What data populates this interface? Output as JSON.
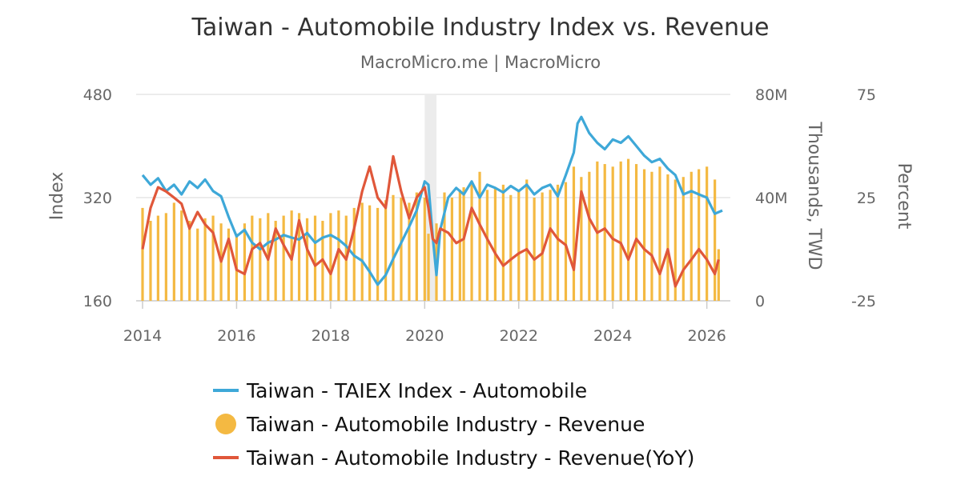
{
  "chart_data": {
    "type": "bar+line",
    "title": "Taiwan - Automobile Industry Index vs. Revenue",
    "subtitle": "MacroMicro.me | MacroMicro",
    "x_ticks": [
      "2014",
      "2016",
      "2018",
      "2020",
      "2022",
      "2024",
      "2026"
    ],
    "x_range": [
      2014.0,
      2026.5
    ],
    "y_axes": {
      "left": {
        "label": "Index",
        "range": [
          160,
          480
        ],
        "ticks": [
          "160",
          "320",
          "480"
        ]
      },
      "right1": {
        "label": "Thousands, TWD",
        "range": [
          0,
          80000
        ],
        "ticks": [
          "0",
          "40M",
          "80M"
        ]
      },
      "right2": {
        "label": "Percent",
        "range": [
          -25,
          75
        ],
        "ticks": [
          "-25",
          "25",
          "75"
        ]
      }
    },
    "shaded_period": [
      2020.0,
      2020.25
    ],
    "colors": {
      "index": "#3ea8d8",
      "revenue": "#f4b942",
      "yoy": "#e0573a",
      "grid": "#e6e6e6",
      "shade": "#ececec"
    },
    "legend": [
      {
        "name": "Taiwan - TAIEX Index - Automobile",
        "marker": "line",
        "color": "#3ea8d8"
      },
      {
        "name": "Taiwan - Automobile Industry - Revenue",
        "marker": "circle",
        "color": "#f4b942"
      },
      {
        "name": "Taiwan - Automobile Industry - Revenue(YoY)",
        "marker": "line",
        "color": "#e0573a"
      }
    ],
    "series": [
      {
        "name": "Taiwan - TAIEX Index - Automobile",
        "axis": "left",
        "type": "line",
        "points": [
          [
            2014.0,
            355
          ],
          [
            2014.17,
            340
          ],
          [
            2014.33,
            350
          ],
          [
            2014.5,
            330
          ],
          [
            2014.67,
            340
          ],
          [
            2014.83,
            325
          ],
          [
            2015.0,
            345
          ],
          [
            2015.17,
            335
          ],
          [
            2015.33,
            348
          ],
          [
            2015.5,
            330
          ],
          [
            2015.67,
            322
          ],
          [
            2015.83,
            290
          ],
          [
            2016.0,
            260
          ],
          [
            2016.17,
            270
          ],
          [
            2016.33,
            250
          ],
          [
            2016.5,
            240
          ],
          [
            2016.67,
            250
          ],
          [
            2016.83,
            255
          ],
          [
            2017.0,
            262
          ],
          [
            2017.17,
            258
          ],
          [
            2017.33,
            255
          ],
          [
            2017.5,
            265
          ],
          [
            2017.67,
            250
          ],
          [
            2017.83,
            258
          ],
          [
            2018.0,
            262
          ],
          [
            2018.17,
            255
          ],
          [
            2018.33,
            245
          ],
          [
            2018.5,
            230
          ],
          [
            2018.67,
            222
          ],
          [
            2018.83,
            205
          ],
          [
            2019.0,
            185
          ],
          [
            2019.17,
            200
          ],
          [
            2019.33,
            225
          ],
          [
            2019.5,
            250
          ],
          [
            2019.67,
            275
          ],
          [
            2019.83,
            300
          ],
          [
            2020.0,
            345
          ],
          [
            2020.08,
            340
          ],
          [
            2020.17,
            260
          ],
          [
            2020.25,
            200
          ],
          [
            2020.33,
            270
          ],
          [
            2020.5,
            320
          ],
          [
            2020.67,
            335
          ],
          [
            2020.83,
            325
          ],
          [
            2021.0,
            345
          ],
          [
            2021.17,
            320
          ],
          [
            2021.33,
            340
          ],
          [
            2021.5,
            335
          ],
          [
            2021.67,
            328
          ],
          [
            2021.83,
            338
          ],
          [
            2022.0,
            330
          ],
          [
            2022.17,
            340
          ],
          [
            2022.33,
            325
          ],
          [
            2022.5,
            335
          ],
          [
            2022.67,
            340
          ],
          [
            2022.83,
            322
          ],
          [
            2023.0,
            355
          ],
          [
            2023.17,
            390
          ],
          [
            2023.25,
            435
          ],
          [
            2023.33,
            445
          ],
          [
            2023.5,
            420
          ],
          [
            2023.67,
            405
          ],
          [
            2023.83,
            395
          ],
          [
            2024.0,
            410
          ],
          [
            2024.17,
            405
          ],
          [
            2024.33,
            415
          ],
          [
            2024.5,
            400
          ],
          [
            2024.67,
            385
          ],
          [
            2024.83,
            375
          ],
          [
            2025.0,
            380
          ],
          [
            2025.17,
            365
          ],
          [
            2025.33,
            355
          ],
          [
            2025.5,
            325
          ],
          [
            2025.67,
            330
          ],
          [
            2025.83,
            325
          ],
          [
            2026.0,
            320
          ],
          [
            2026.17,
            295
          ],
          [
            2026.33,
            300
          ]
        ]
      },
      {
        "name": "Taiwan - Automobile Industry - Revenue",
        "axis": "right1",
        "type": "bar",
        "points": [
          [
            2014.0,
            36000
          ],
          [
            2014.17,
            31000
          ],
          [
            2014.33,
            33000
          ],
          [
            2014.5,
            34000
          ],
          [
            2014.67,
            38000
          ],
          [
            2014.83,
            35000
          ],
          [
            2015.0,
            31000
          ],
          [
            2015.17,
            28000
          ],
          [
            2015.33,
            32000
          ],
          [
            2015.5,
            33000
          ],
          [
            2015.67,
            30000
          ],
          [
            2015.83,
            28000
          ],
          [
            2016.0,
            26000
          ],
          [
            2016.17,
            30000
          ],
          [
            2016.33,
            33000
          ],
          [
            2016.5,
            32000
          ],
          [
            2016.67,
            34000
          ],
          [
            2016.83,
            31000
          ],
          [
            2017.0,
            33000
          ],
          [
            2017.17,
            35000
          ],
          [
            2017.33,
            34000
          ],
          [
            2017.5,
            32000
          ],
          [
            2017.67,
            33000
          ],
          [
            2017.83,
            31000
          ],
          [
            2018.0,
            34000
          ],
          [
            2018.17,
            35000
          ],
          [
            2018.33,
            33000
          ],
          [
            2018.5,
            36000
          ],
          [
            2018.67,
            38000
          ],
          [
            2018.83,
            37000
          ],
          [
            2019.0,
            36000
          ],
          [
            2019.17,
            39000
          ],
          [
            2019.33,
            41000
          ],
          [
            2019.5,
            40000
          ],
          [
            2019.67,
            38000
          ],
          [
            2019.83,
            42000
          ],
          [
            2020.0,
            40000
          ],
          [
            2020.08,
            26000
          ],
          [
            2020.25,
            30000
          ],
          [
            2020.42,
            42000
          ],
          [
            2020.58,
            40000
          ],
          [
            2020.75,
            43000
          ],
          [
            2020.83,
            44000
          ],
          [
            2021.0,
            46000
          ],
          [
            2021.17,
            50000
          ],
          [
            2021.33,
            43000
          ],
          [
            2021.5,
            44000
          ],
          [
            2021.67,
            45000
          ],
          [
            2021.83,
            41000
          ],
          [
            2022.0,
            43000
          ],
          [
            2022.17,
            47000
          ],
          [
            2022.33,
            40000
          ],
          [
            2022.5,
            42000
          ],
          [
            2022.67,
            43000
          ],
          [
            2022.83,
            45000
          ],
          [
            2023.0,
            46000
          ],
          [
            2023.17,
            52000
          ],
          [
            2023.33,
            48000
          ],
          [
            2023.5,
            50000
          ],
          [
            2023.67,
            54000
          ],
          [
            2023.83,
            53000
          ],
          [
            2024.0,
            52000
          ],
          [
            2024.17,
            54000
          ],
          [
            2024.33,
            55000
          ],
          [
            2024.5,
            53000
          ],
          [
            2024.67,
            51000
          ],
          [
            2024.83,
            50000
          ],
          [
            2025.0,
            52000
          ],
          [
            2025.17,
            49000
          ],
          [
            2025.33,
            47000
          ],
          [
            2025.5,
            48000
          ],
          [
            2025.67,
            50000
          ],
          [
            2025.83,
            51000
          ],
          [
            2026.0,
            52000
          ],
          [
            2026.17,
            47000
          ],
          [
            2026.25,
            20000
          ]
        ]
      },
      {
        "name": "Taiwan - Automobile Industry - Revenue(YoY)",
        "axis": "right2",
        "type": "line",
        "points": [
          [
            2014.0,
            0
          ],
          [
            2014.17,
            20
          ],
          [
            2014.33,
            30
          ],
          [
            2014.5,
            28
          ],
          [
            2014.67,
            25
          ],
          [
            2014.83,
            22
          ],
          [
            2015.0,
            10
          ],
          [
            2015.17,
            18
          ],
          [
            2015.33,
            12
          ],
          [
            2015.5,
            8
          ],
          [
            2015.67,
            -6
          ],
          [
            2015.83,
            5
          ],
          [
            2016.0,
            -10
          ],
          [
            2016.17,
            -12
          ],
          [
            2016.33,
            0
          ],
          [
            2016.5,
            3
          ],
          [
            2016.67,
            -5
          ],
          [
            2016.83,
            10
          ],
          [
            2017.0,
            2
          ],
          [
            2017.17,
            -5
          ],
          [
            2017.33,
            14
          ],
          [
            2017.5,
            0
          ],
          [
            2017.67,
            -8
          ],
          [
            2017.83,
            -5
          ],
          [
            2018.0,
            -12
          ],
          [
            2018.17,
            0
          ],
          [
            2018.33,
            -5
          ],
          [
            2018.5,
            10
          ],
          [
            2018.67,
            28
          ],
          [
            2018.83,
            40
          ],
          [
            2019.0,
            25
          ],
          [
            2019.17,
            20
          ],
          [
            2019.33,
            45
          ],
          [
            2019.5,
            28
          ],
          [
            2019.67,
            15
          ],
          [
            2019.83,
            25
          ],
          [
            2020.0,
            30
          ],
          [
            2020.08,
            20
          ],
          [
            2020.17,
            5
          ],
          [
            2020.25,
            3
          ],
          [
            2020.33,
            10
          ],
          [
            2020.5,
            8
          ],
          [
            2020.67,
            3
          ],
          [
            2020.83,
            5
          ],
          [
            2021.0,
            20
          ],
          [
            2021.17,
            12
          ],
          [
            2021.33,
            5
          ],
          [
            2021.5,
            -2
          ],
          [
            2021.67,
            -8
          ],
          [
            2021.83,
            -5
          ],
          [
            2022.0,
            -2
          ],
          [
            2022.17,
            0
          ],
          [
            2022.33,
            -5
          ],
          [
            2022.5,
            -2
          ],
          [
            2022.67,
            10
          ],
          [
            2022.83,
            5
          ],
          [
            2023.0,
            2
          ],
          [
            2023.17,
            -10
          ],
          [
            2023.33,
            28
          ],
          [
            2023.5,
            15
          ],
          [
            2023.67,
            8
          ],
          [
            2023.83,
            10
          ],
          [
            2024.0,
            5
          ],
          [
            2024.17,
            3
          ],
          [
            2024.33,
            -5
          ],
          [
            2024.5,
            5
          ],
          [
            2024.67,
            0
          ],
          [
            2024.83,
            -3
          ],
          [
            2025.0,
            -12
          ],
          [
            2025.17,
            0
          ],
          [
            2025.33,
            -18
          ],
          [
            2025.5,
            -10
          ],
          [
            2025.67,
            -5
          ],
          [
            2025.83,
            0
          ],
          [
            2026.0,
            -5
          ],
          [
            2026.17,
            -12
          ],
          [
            2026.25,
            -5
          ]
        ]
      }
    ]
  }
}
